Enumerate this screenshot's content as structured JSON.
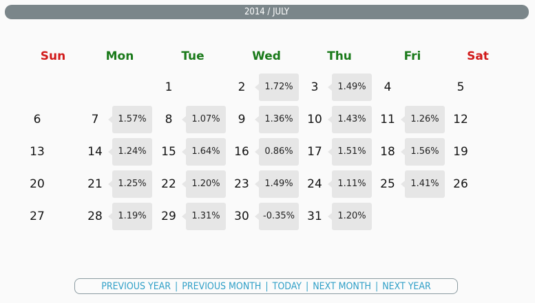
{
  "header": {
    "title": "2014 / JULY"
  },
  "colors": {
    "weekend": "#d11a1a",
    "weekday": "#1a7a1a",
    "link": "#2f9fc7"
  },
  "weekdays": [
    "Sun",
    "Mon",
    "Tue",
    "Wed",
    "Thu",
    "Fri",
    "Sat"
  ],
  "weeks": [
    [
      null,
      null,
      {
        "day": "1",
        "pct": ""
      },
      {
        "day": "2",
        "pct": "1.72%"
      },
      {
        "day": "3",
        "pct": "1.49%"
      },
      {
        "day": "4",
        "pct": ""
      },
      {
        "day": "5",
        "pct": ""
      }
    ],
    [
      {
        "day": "6",
        "pct": ""
      },
      {
        "day": "7",
        "pct": "1.57%"
      },
      {
        "day": "8",
        "pct": "1.07%"
      },
      {
        "day": "9",
        "pct": "1.36%"
      },
      {
        "day": "10",
        "pct": "1.43%"
      },
      {
        "day": "11",
        "pct": "1.26%"
      },
      {
        "day": "12",
        "pct": ""
      }
    ],
    [
      {
        "day": "13",
        "pct": ""
      },
      {
        "day": "14",
        "pct": "1.24%"
      },
      {
        "day": "15",
        "pct": "1.64%"
      },
      {
        "day": "16",
        "pct": "0.86%"
      },
      {
        "day": "17",
        "pct": "1.51%"
      },
      {
        "day": "18",
        "pct": "1.56%"
      },
      {
        "day": "19",
        "pct": ""
      }
    ],
    [
      {
        "day": "20",
        "pct": ""
      },
      {
        "day": "21",
        "pct": "1.25%"
      },
      {
        "day": "22",
        "pct": "1.20%"
      },
      {
        "day": "23",
        "pct": "1.49%"
      },
      {
        "day": "24",
        "pct": "1.11%"
      },
      {
        "day": "25",
        "pct": "1.41%"
      },
      {
        "day": "26",
        "pct": ""
      }
    ],
    [
      {
        "day": "27",
        "pct": ""
      },
      {
        "day": "28",
        "pct": "1.19%"
      },
      {
        "day": "29",
        "pct": "1.31%"
      },
      {
        "day": "30",
        "pct": "-0.35%"
      },
      {
        "day": "31",
        "pct": "1.20%"
      },
      null,
      null
    ]
  ],
  "nav": {
    "separator": "|",
    "links": [
      "PREVIOUS YEAR",
      "PREVIOUS MONTH",
      "TODAY",
      "NEXT MONTH",
      "NEXT YEAR"
    ]
  }
}
